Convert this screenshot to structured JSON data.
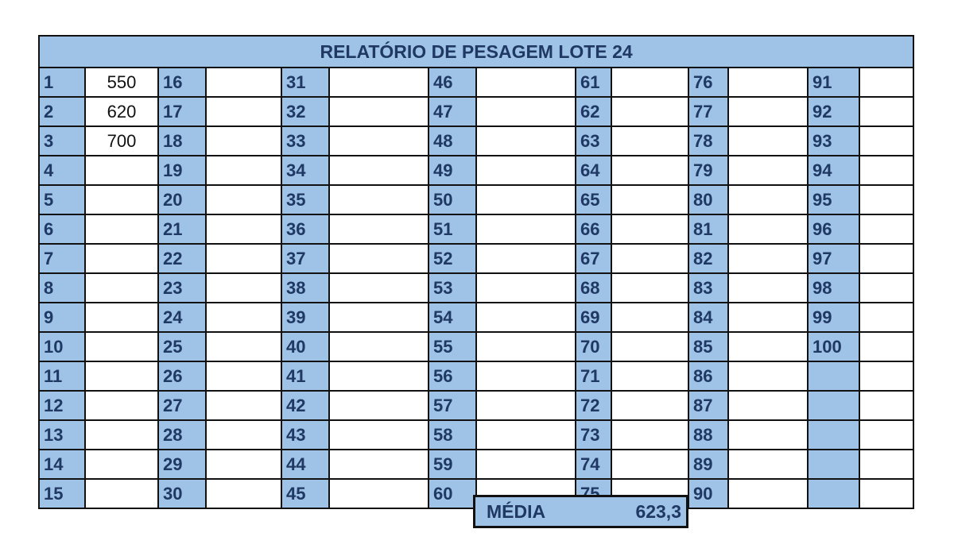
{
  "report": {
    "title": "RELATÓRIO DE PESAGEM LOTE 24",
    "columns": [
      {
        "labels": [
          "1",
          "2",
          "3",
          "4",
          "5",
          "6",
          "7",
          "8",
          "9",
          "10",
          "11",
          "12",
          "13",
          "14",
          "15"
        ],
        "values": [
          "550",
          "620",
          "700",
          "",
          "",
          "",
          "",
          "",
          "",
          "",
          "",
          "",
          "",
          "",
          ""
        ]
      },
      {
        "labels": [
          "16",
          "17",
          "18",
          "19",
          "20",
          "21",
          "22",
          "23",
          "24",
          "25",
          "26",
          "27",
          "28",
          "29",
          "30"
        ],
        "values": [
          "",
          "",
          "",
          "",
          "",
          "",
          "",
          "",
          "",
          "",
          "",
          "",
          "",
          "",
          ""
        ]
      },
      {
        "labels": [
          "31",
          "32",
          "33",
          "34",
          "35",
          "36",
          "37",
          "38",
          "39",
          "40",
          "41",
          "42",
          "43",
          "44",
          "45"
        ],
        "values": [
          "",
          "",
          "",
          "",
          "",
          "",
          "",
          "",
          "",
          "",
          "",
          "",
          "",
          "",
          ""
        ]
      },
      {
        "labels": [
          "46",
          "47",
          "48",
          "49",
          "50",
          "51",
          "52",
          "53",
          "54",
          "55",
          "56",
          "57",
          "58",
          "59",
          "60"
        ],
        "values": [
          "",
          "",
          "",
          "",
          "",
          "",
          "",
          "",
          "",
          "",
          "",
          "",
          "",
          "",
          ""
        ]
      },
      {
        "labels": [
          "61",
          "62",
          "63",
          "64",
          "65",
          "66",
          "67",
          "68",
          "69",
          "70",
          "71",
          "72",
          "73",
          "74",
          "75"
        ],
        "values": [
          "",
          "",
          "",
          "",
          "",
          "",
          "",
          "",
          "",
          "",
          "",
          "",
          "",
          "",
          ""
        ]
      },
      {
        "labels": [
          "76",
          "77",
          "78",
          "79",
          "80",
          "81",
          "82",
          "83",
          "84",
          "85",
          "86",
          "87",
          "88",
          "89",
          "90"
        ],
        "values": [
          "",
          "",
          "",
          "",
          "",
          "",
          "",
          "",
          "",
          "",
          "",
          "",
          "",
          "",
          ""
        ]
      },
      {
        "labels": [
          "91",
          "92",
          "93",
          "94",
          "95",
          "96",
          "97",
          "98",
          "99",
          "100",
          "",
          "",
          "",
          "",
          ""
        ],
        "values": [
          "",
          "",
          "",
          "",
          "",
          "",
          "",
          "",
          "",
          "",
          "",
          "",
          "",
          "",
          ""
        ]
      }
    ],
    "summary": {
      "label": "MÉDIA",
      "value": "623,3"
    },
    "colors": {
      "header_fill": "#9ec3e6",
      "label_text": "#1f3864",
      "grid_line": "#111111"
    }
  }
}
